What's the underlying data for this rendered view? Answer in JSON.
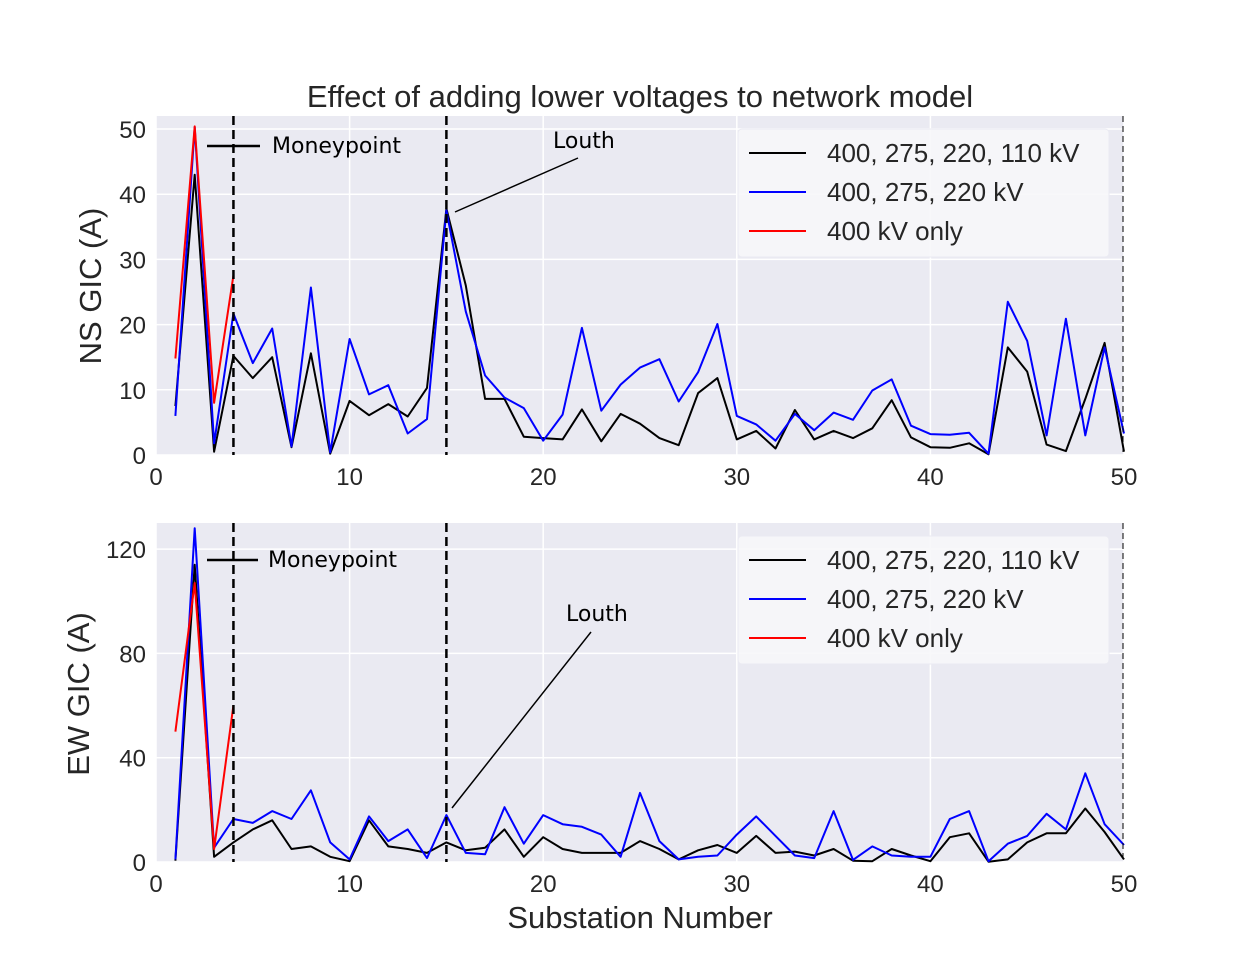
{
  "title": "Effect of adding lower voltages to network model",
  "xlabel": "Substation Number",
  "colors": {
    "black": "#000000",
    "blue": "#0000ff",
    "red": "#ff0000",
    "panel_bg": "#eaeaf2",
    "grid": "#ffffff"
  },
  "chart_data": [
    {
      "type": "line",
      "ylabel": "NS GIC (A)",
      "xlim": [
        0,
        50
      ],
      "ylim": [
        0,
        52
      ],
      "xticks": [
        "0",
        "10",
        "20",
        "30",
        "40",
        "50"
      ],
      "yticks": [
        "0",
        "10",
        "20",
        "30",
        "40",
        "50"
      ],
      "ytick_values": [
        0,
        10,
        20,
        30,
        40,
        50
      ],
      "vlines": [
        4,
        15
      ],
      "annotations": [
        {
          "text": "Moneypoint",
          "kind": "legend-line"
        },
        {
          "text": "Louth",
          "kind": "arrow",
          "target": [
            15,
            37.5
          ]
        }
      ],
      "legend_location": "upper right",
      "series": [
        {
          "name": "400, 275, 220, 110 kV",
          "color": "#000000",
          "x": [
            1,
            2,
            3,
            4,
            5,
            6,
            7,
            8,
            9,
            10,
            11,
            12,
            13,
            14,
            15,
            16,
            17,
            18,
            19,
            20,
            21,
            22,
            23,
            24,
            25,
            26,
            27,
            28,
            29,
            30,
            31,
            32,
            33,
            34,
            35,
            36,
            37,
            38,
            39,
            40,
            41,
            42,
            43,
            44,
            45,
            46,
            47,
            48,
            49,
            50
          ],
          "y": [
            7.5,
            43,
            0.5,
            15.2,
            11.8,
            15,
            1.2,
            15.6,
            0.2,
            8.3,
            6.1,
            7.8,
            5.9,
            10.3,
            37.8,
            26,
            8.6,
            8.6,
            2.8,
            2.6,
            2.4,
            7,
            2.1,
            6.3,
            4.8,
            2.6,
            1.5,
            9.5,
            11.8,
            2.4,
            3.7,
            1,
            6.9,
            2.4,
            3.7,
            2.6,
            4.1,
            8.4,
            2.7,
            1.2,
            1.1,
            1.8,
            0.1,
            16.5,
            12.8,
            1.6,
            0.6,
            8.6,
            17.2,
            0.5
          ]
        },
        {
          "name": "400, 275, 220 kV",
          "color": "#0000ff",
          "x": [
            1,
            2,
            3,
            4,
            5,
            6,
            7,
            8,
            9,
            10,
            11,
            12,
            13,
            14,
            15,
            16,
            17,
            18,
            19,
            20,
            21,
            22,
            23,
            24,
            25,
            26,
            27,
            28,
            29,
            30,
            31,
            32,
            33,
            34,
            35,
            36,
            37,
            38,
            39,
            40,
            41,
            42,
            43,
            44,
            45,
            46,
            47,
            48,
            49,
            50
          ],
          "y": [
            6,
            50.3,
            1.8,
            21.7,
            14.1,
            19.4,
            1.3,
            25.7,
            0.4,
            17.8,
            9.3,
            10.7,
            3.3,
            5.5,
            37.5,
            22,
            12.2,
            8.8,
            7.2,
            2.2,
            6.2,
            19.5,
            6.8,
            10.8,
            13.4,
            14.7,
            8.2,
            12.7,
            20.1,
            6,
            4.7,
            2.2,
            6.3,
            3.8,
            6.5,
            5.4,
            9.9,
            11.6,
            4.5,
            3.2,
            3.1,
            3.4,
            0.2,
            23.5,
            17.5,
            3,
            20.9,
            3,
            16.5,
            3.3
          ]
        },
        {
          "name": "400 kV only",
          "color": "#ff0000",
          "x": [
            1,
            2,
            3,
            4
          ],
          "y": [
            14.8,
            50.4,
            8,
            27.5
          ]
        }
      ]
    },
    {
      "type": "line",
      "ylabel": "EW GIC (A)",
      "xlim": [
        0,
        50
      ],
      "ylim": [
        0,
        130
      ],
      "xticks": [
        "0",
        "10",
        "20",
        "30",
        "40",
        "50"
      ],
      "yticks": [
        "0",
        "40",
        "80",
        "120"
      ],
      "ytick_values": [
        0,
        40,
        80,
        120
      ],
      "vlines": [
        4,
        15
      ],
      "annotations": [
        {
          "text": "Moneypoint",
          "kind": "legend-line"
        },
        {
          "text": "Louth",
          "kind": "arrow",
          "target": [
            15,
            20
          ]
        }
      ],
      "legend_location": "upper right",
      "series": [
        {
          "name": "400, 275, 220, 110 kV",
          "color": "#000000",
          "x": [
            1,
            2,
            3,
            4,
            5,
            6,
            7,
            8,
            9,
            10,
            11,
            12,
            13,
            14,
            15,
            16,
            17,
            18,
            19,
            20,
            21,
            22,
            23,
            24,
            25,
            26,
            27,
            28,
            29,
            30,
            31,
            32,
            33,
            34,
            35,
            36,
            37,
            38,
            39,
            40,
            41,
            42,
            43,
            44,
            45,
            46,
            47,
            48,
            49,
            50
          ],
          "y": [
            0.5,
            114,
            2,
            7.5,
            12.5,
            16,
            5,
            6,
            2,
            0.3,
            16,
            6,
            5,
            3.5,
            7.5,
            4.5,
            5.5,
            12.5,
            2,
            9.5,
            5,
            3.5,
            3.5,
            3.5,
            8,
            5,
            1,
            4.5,
            6.5,
            3.5,
            10,
            3.5,
            4,
            2.5,
            5,
            0.5,
            0.3,
            5,
            2.5,
            0.3,
            9.5,
            11,
            0.1,
            1,
            7.5,
            11,
            11,
            20.5,
            11.5,
            1
          ]
        },
        {
          "name": "400, 275, 220 kV",
          "color": "#0000ff",
          "x": [
            1,
            2,
            3,
            4,
            5,
            6,
            7,
            8,
            9,
            10,
            11,
            12,
            13,
            14,
            15,
            16,
            17,
            18,
            19,
            20,
            21,
            22,
            23,
            24,
            25,
            26,
            27,
            28,
            29,
            30,
            31,
            32,
            33,
            34,
            35,
            36,
            37,
            38,
            39,
            40,
            41,
            42,
            43,
            44,
            45,
            46,
            47,
            48,
            49,
            50
          ],
          "y": [
            1,
            128,
            5.5,
            16.5,
            15,
            19.5,
            16.5,
            27.5,
            7.5,
            1,
            17.5,
            8,
            12.5,
            1.5,
            18,
            3.5,
            3,
            21,
            7,
            18,
            14.5,
            13.5,
            10.5,
            2,
            26.5,
            8,
            1,
            2,
            2.5,
            10.5,
            17.5,
            10,
            2.5,
            1.5,
            19.5,
            0.8,
            6,
            2.5,
            2,
            2,
            16.5,
            19.5,
            0.3,
            7,
            10,
            18.5,
            12.5,
            34,
            14.5,
            6.5
          ]
        },
        {
          "name": "400 kV only",
          "color": "#ff0000",
          "x": [
            1,
            2,
            3,
            4
          ],
          "y": [
            50,
            107,
            5,
            60
          ]
        }
      ]
    }
  ]
}
